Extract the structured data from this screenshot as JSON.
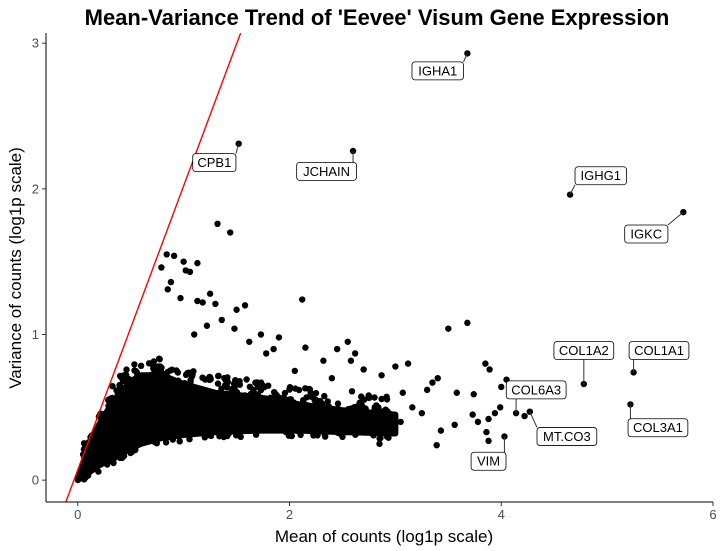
{
  "chart_data": {
    "type": "scatter",
    "title": "Mean-Variance Trend of 'Eevee' Visum Gene Expression",
    "xlabel": "Mean of counts (log1p scale)",
    "ylabel": "Variance of counts (log1p scale)",
    "xlim": [
      -0.3,
      6.0
    ],
    "ylim": [
      -0.15,
      3.07
    ],
    "x_ticks": [
      0,
      2,
      4,
      6
    ],
    "x_tick_labels": [
      "0",
      "2",
      "4",
      "6"
    ],
    "y_ticks": [
      0,
      1,
      2,
      3
    ],
    "y_tick_labels": [
      "0",
      "1",
      "2",
      "3"
    ],
    "grid": false,
    "point_color": "#000000",
    "reference_line": {
      "slope": 1.95,
      "intercept": 0.07,
      "color": "#ff0000"
    },
    "dense_cloud": {
      "description_free": true,
      "upper_curve": [
        [
          0,
          0
        ],
        [
          0.05,
          0.12
        ],
        [
          0.1,
          0.22
        ],
        [
          0.2,
          0.38
        ],
        [
          0.3,
          0.5
        ],
        [
          0.4,
          0.6
        ],
        [
          0.5,
          0.68
        ],
        [
          0.6,
          0.72
        ],
        [
          0.8,
          0.72
        ],
        [
          1.0,
          0.66
        ],
        [
          1.3,
          0.6
        ],
        [
          1.7,
          0.57
        ],
        [
          2.1,
          0.52
        ],
        [
          2.5,
          0.48
        ],
        [
          3.0,
          0.45
        ]
      ],
      "lower_curve": [
        [
          0,
          0
        ],
        [
          0.1,
          0.05
        ],
        [
          0.2,
          0.1
        ],
        [
          0.4,
          0.18
        ],
        [
          0.6,
          0.25
        ],
        [
          0.8,
          0.29
        ],
        [
          1.0,
          0.31
        ],
        [
          1.3,
          0.33
        ],
        [
          1.7,
          0.34
        ],
        [
          2.1,
          0.34
        ],
        [
          2.5,
          0.33
        ],
        [
          3.0,
          0.32
        ]
      ]
    },
    "points": [
      {
        "x": 3.68,
        "y": 2.93
      },
      {
        "x": 1.52,
        "y": 2.31
      },
      {
        "x": 2.6,
        "y": 2.26
      },
      {
        "x": 4.65,
        "y": 1.96
      },
      {
        "x": 5.72,
        "y": 1.84
      },
      {
        "x": 1.32,
        "y": 1.76
      },
      {
        "x": 1.44,
        "y": 1.7
      },
      {
        "x": 0.84,
        "y": 1.55
      },
      {
        "x": 0.91,
        "y": 1.54
      },
      {
        "x": 1.0,
        "y": 1.5
      },
      {
        "x": 0.79,
        "y": 1.46
      },
      {
        "x": 1.02,
        "y": 1.44
      },
      {
        "x": 1.06,
        "y": 1.43
      },
      {
        "x": 1.13,
        "y": 1.49
      },
      {
        "x": 0.88,
        "y": 1.36
      },
      {
        "x": 0.85,
        "y": 1.31
      },
      {
        "x": 0.97,
        "y": 1.25
      },
      {
        "x": 1.13,
        "y": 1.23
      },
      {
        "x": 1.18,
        "y": 1.22
      },
      {
        "x": 1.25,
        "y": 1.28
      },
      {
        "x": 1.3,
        "y": 1.21
      },
      {
        "x": 1.5,
        "y": 1.17
      },
      {
        "x": 1.58,
        "y": 1.2
      },
      {
        "x": 2.12,
        "y": 1.24
      },
      {
        "x": 1.36,
        "y": 1.1
      },
      {
        "x": 1.22,
        "y": 1.06
      },
      {
        "x": 1.48,
        "y": 1.04
      },
      {
        "x": 1.1,
        "y": 1.0
      },
      {
        "x": 3.68,
        "y": 1.08
      },
      {
        "x": 3.5,
        "y": 1.04
      },
      {
        "x": 4.78,
        "y": 0.66
      },
      {
        "x": 5.25,
        "y": 0.74
      },
      {
        "x": 5.22,
        "y": 0.52
      },
      {
        "x": 4.27,
        "y": 0.47
      },
      {
        "x": 4.22,
        "y": 0.44
      },
      {
        "x": 4.14,
        "y": 0.46
      },
      {
        "x": 3.99,
        "y": 0.5
      },
      {
        "x": 3.94,
        "y": 0.46
      },
      {
        "x": 3.88,
        "y": 0.42
      },
      {
        "x": 3.78,
        "y": 0.4
      },
      {
        "x": 3.73,
        "y": 0.45
      },
      {
        "x": 3.56,
        "y": 0.38
      },
      {
        "x": 3.86,
        "y": 0.33
      },
      {
        "x": 4.03,
        "y": 0.3
      },
      {
        "x": 3.88,
        "y": 0.27
      },
      {
        "x": 3.85,
        "y": 0.8
      },
      {
        "x": 3.89,
        "y": 0.76
      },
      {
        "x": 4.05,
        "y": 0.69
      },
      {
        "x": 4.0,
        "y": 0.64
      },
      {
        "x": 3.58,
        "y": 0.6
      },
      {
        "x": 3.74,
        "y": 0.59
      },
      {
        "x": 3.35,
        "y": 0.67
      },
      {
        "x": 3.4,
        "y": 0.7
      },
      {
        "x": 3.3,
        "y": 0.62
      },
      {
        "x": 3.12,
        "y": 0.8
      },
      {
        "x": 3.0,
        "y": 0.78
      },
      {
        "x": 3.07,
        "y": 0.6
      },
      {
        "x": 3.43,
        "y": 0.34
      },
      {
        "x": 3.39,
        "y": 0.24
      },
      {
        "x": 2.96,
        "y": 0.35
      },
      {
        "x": 2.62,
        "y": 0.87
      },
      {
        "x": 2.58,
        "y": 0.82
      },
      {
        "x": 2.7,
        "y": 0.76
      },
      {
        "x": 2.59,
        "y": 0.61
      },
      {
        "x": 2.87,
        "y": 0.72
      },
      {
        "x": 2.85,
        "y": 0.25
      },
      {
        "x": 2.92,
        "y": 0.3
      },
      {
        "x": 2.4,
        "y": 0.7
      },
      {
        "x": 2.55,
        "y": 0.95
      },
      {
        "x": 2.45,
        "y": 0.9
      },
      {
        "x": 2.15,
        "y": 0.91
      },
      {
        "x": 2.5,
        "y": 0.39
      },
      {
        "x": 3.25,
        "y": 0.46
      },
      {
        "x": 3.16,
        "y": 0.5
      },
      {
        "x": 3.05,
        "y": 0.4
      },
      {
        "x": 2.78,
        "y": 0.46
      },
      {
        "x": 2.66,
        "y": 0.52
      },
      {
        "x": 2.2,
        "y": 0.6
      },
      {
        "x": 2.32,
        "y": 0.82
      },
      {
        "x": 2.05,
        "y": 0.75
      },
      {
        "x": 1.9,
        "y": 0.98
      },
      {
        "x": 1.85,
        "y": 0.9
      },
      {
        "x": 1.78,
        "y": 0.87
      },
      {
        "x": 1.62,
        "y": 0.95
      },
      {
        "x": 1.73,
        "y": 1.0
      }
    ],
    "labels": [
      {
        "gene": "IGHA1",
        "x": 3.68,
        "y": 2.93,
        "lx": 3.4,
        "ly": 2.81
      },
      {
        "gene": "CPB1",
        "x": 1.52,
        "y": 2.31,
        "lx": 1.29,
        "ly": 2.18
      },
      {
        "gene": "JCHAIN",
        "x": 2.6,
        "y": 2.26,
        "lx": 2.35,
        "ly": 2.12
      },
      {
        "gene": "IGHG1",
        "x": 4.65,
        "y": 1.96,
        "lx": 4.94,
        "ly": 2.09
      },
      {
        "gene": "IGKC",
        "x": 5.72,
        "y": 1.84,
        "lx": 5.37,
        "ly": 1.69
      },
      {
        "gene": "COL1A2",
        "x": 4.78,
        "y": 0.66,
        "lx": 4.78,
        "ly": 0.89
      },
      {
        "gene": "COL1A1",
        "x": 5.25,
        "y": 0.74,
        "lx": 5.49,
        "ly": 0.89
      },
      {
        "gene": "COL6A3",
        "x": 4.14,
        "y": 0.46,
        "lx": 4.33,
        "ly": 0.62
      },
      {
        "gene": "MT.CO3",
        "x": 4.27,
        "y": 0.47,
        "lx": 4.62,
        "ly": 0.3
      },
      {
        "gene": "COL3A1",
        "x": 5.22,
        "y": 0.52,
        "lx": 5.48,
        "ly": 0.36
      },
      {
        "gene": "VIM",
        "x": 4.03,
        "y": 0.3,
        "lx": 3.88,
        "ly": 0.13
      }
    ]
  }
}
